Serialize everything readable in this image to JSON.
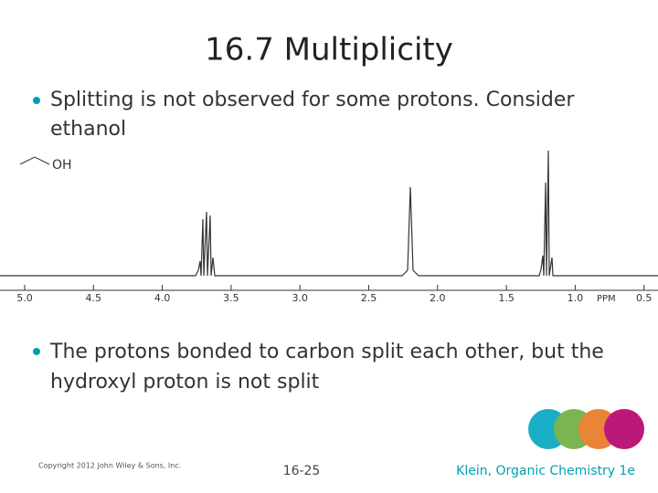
{
  "slide": {
    "title": "16.7 Multiplicity",
    "bullets": [
      {
        "lines": [
          "Splitting is not observed for some protons.  Consider",
          "ethanol"
        ]
      },
      {
        "lines": [
          "The protons bonded to carbon split each other, but the",
          "hydroxyl proton is not split"
        ]
      }
    ],
    "figure": {
      "molecule_label": "OH",
      "axis_ticks": [
        "5.0",
        "4.5",
        "4.0",
        "3.5",
        "3.0",
        "2.5",
        "2.0",
        "1.5",
        "1.0",
        "0.5"
      ],
      "axis_unit": "PPM"
    },
    "footer": {
      "copyright": "Copyright 2012 John Wiley & Sons, Inc.",
      "page": "16-25",
      "source": "Klein, Organic Chemistry 1e"
    }
  }
}
